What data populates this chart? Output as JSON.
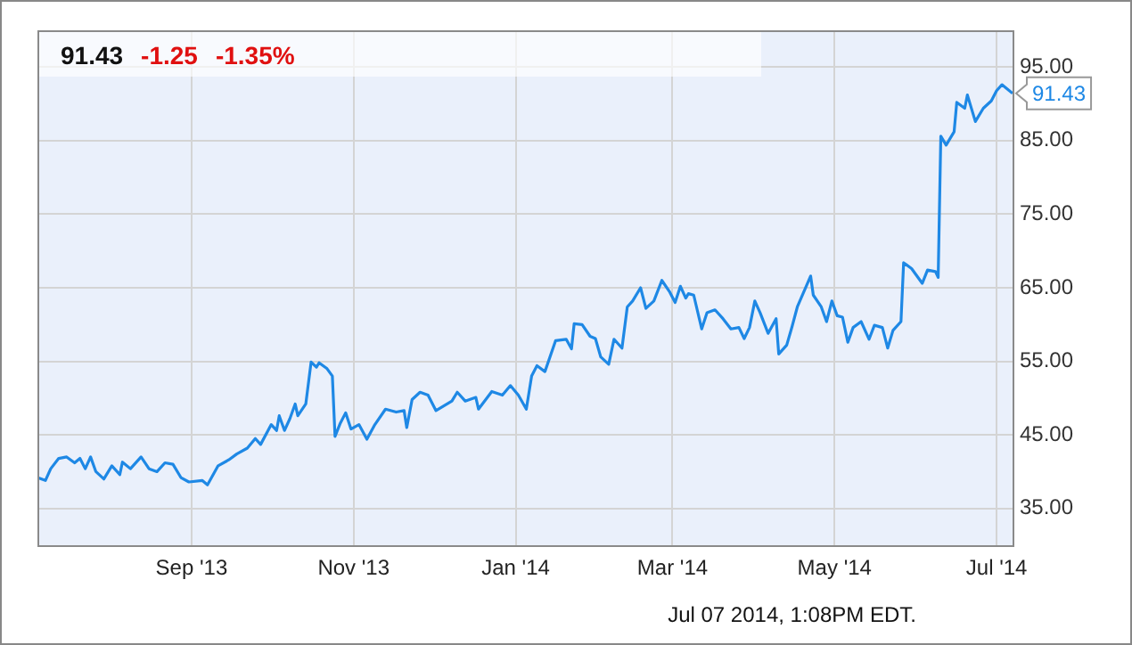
{
  "chart_data": {
    "type": "line",
    "annotations": [
      "91.43",
      "-1.25",
      "-1.35%",
      "Jul 07 2014, 1:08PM EDT.",
      {
        "text": "91.43",
        "x": "2014-07-07",
        "y": 91.43
      }
    ],
    "x": [
      "2013-07-05",
      "2013-07-08",
      "2013-07-10",
      "2013-07-13",
      "2013-07-16",
      "2013-07-19",
      "2013-07-21",
      "2013-07-23",
      "2013-07-25",
      "2013-07-27",
      "2013-07-30",
      "2013-08-02",
      "2013-08-05",
      "2013-08-06",
      "2013-08-09",
      "2013-08-13",
      "2013-08-16",
      "2013-08-19",
      "2013-08-22",
      "2013-08-25",
      "2013-08-28",
      "2013-08-31",
      "2013-09-05",
      "2013-09-07",
      "2013-09-11",
      "2013-09-15",
      "2013-09-18",
      "2013-09-22",
      "2013-09-25",
      "2013-09-27",
      "2013-10-01",
      "2013-10-03",
      "2013-10-04",
      "2013-10-06",
      "2013-10-08",
      "2013-10-10",
      "2013-10-11",
      "2013-10-14",
      "2013-10-16",
      "2013-10-18",
      "2013-10-19",
      "2013-10-22",
      "2013-10-24",
      "2013-10-25",
      "2013-10-27",
      "2013-10-29",
      "2013-10-31",
      "2013-11-03",
      "2013-11-06",
      "2013-11-09",
      "2013-11-13",
      "2013-11-17",
      "2013-11-20",
      "2013-11-21",
      "2013-11-23",
      "2013-11-26",
      "2013-11-29",
      "2013-12-02",
      "2013-12-08",
      "2013-12-10",
      "2013-12-13",
      "2013-12-17",
      "2013-12-18",
      "2013-12-23",
      "2013-12-27",
      "2013-12-30",
      "2014-01-02",
      "2014-01-05",
      "2014-01-07",
      "2014-01-09",
      "2014-01-12",
      "2014-01-16",
      "2014-01-20",
      "2014-01-22",
      "2014-01-23",
      "2014-01-26",
      "2014-01-29",
      "2014-01-31",
      "2014-02-02",
      "2014-02-05",
      "2014-02-07",
      "2014-02-10",
      "2014-02-12",
      "2014-02-14",
      "2014-02-17",
      "2014-02-19",
      "2014-02-22",
      "2014-02-25",
      "2014-02-28",
      "2014-03-02",
      "2014-03-04",
      "2014-03-06",
      "2014-03-07",
      "2014-03-09",
      "2014-03-12",
      "2014-03-14",
      "2014-03-17",
      "2014-03-20",
      "2014-03-23",
      "2014-03-26",
      "2014-03-28",
      "2014-03-30",
      "2014-04-01",
      "2014-04-03",
      "2014-04-06",
      "2014-04-09",
      "2014-04-10",
      "2014-04-13",
      "2014-04-15",
      "2014-04-17",
      "2014-04-22",
      "2014-04-23",
      "2014-04-26",
      "2014-04-28",
      "2014-04-30",
      "2014-05-02",
      "2014-05-04",
      "2014-05-06",
      "2014-05-08",
      "2014-05-11",
      "2014-05-14",
      "2014-05-16",
      "2014-05-19",
      "2014-05-21",
      "2014-05-23",
      "2014-05-26",
      "2014-05-27",
      "2014-05-30",
      "2014-06-03",
      "2014-06-05",
      "2014-06-08",
      "2014-06-09",
      "2014-06-10",
      "2014-06-12",
      "2014-06-15",
      "2014-06-16",
      "2014-06-19",
      "2014-06-20",
      "2014-06-23",
      "2014-06-26",
      "2014-06-29",
      "2014-07-01",
      "2014-07-03",
      "2014-07-07"
    ],
    "series": [
      {
        "color": "#1e88e5",
        "values": [
          39.2,
          38.8,
          40.4,
          41.8,
          42.0,
          41.2,
          41.8,
          40.4,
          42.0,
          40.0,
          39.0,
          40.8,
          39.6,
          41.3,
          40.4,
          42.0,
          40.4,
          40.0,
          41.2,
          41.0,
          39.2,
          38.6,
          38.8,
          38.2,
          40.8,
          41.6,
          42.4,
          43.2,
          44.5,
          43.7,
          46.4,
          45.6,
          47.6,
          45.6,
          47.2,
          49.2,
          47.6,
          49.2,
          54.9,
          54.2,
          54.8,
          54.0,
          53.0,
          44.8,
          46.6,
          48.0,
          45.8,
          46.4,
          44.4,
          46.4,
          48.5,
          48.1,
          48.3,
          46.0,
          49.8,
          50.8,
          50.4,
          48.3,
          49.6,
          50.8,
          49.6,
          50.1,
          48.5,
          50.9,
          50.4,
          51.7,
          50.4,
          48.5,
          53.0,
          54.4,
          53.6,
          57.8,
          58.0,
          56.7,
          60.1,
          60.0,
          58.4,
          58.1,
          55.6,
          54.6,
          58.0,
          56.8,
          62.4,
          63.2,
          65.0,
          62.2,
          63.2,
          66.0,
          64.4,
          63.0,
          65.2,
          63.6,
          64.2,
          64.0,
          59.4,
          61.6,
          62.0,
          60.8,
          59.4,
          59.6,
          58.1,
          59.6,
          63.2,
          61.6,
          58.8,
          60.8,
          56.0,
          57.2,
          59.7,
          62.4,
          66.6,
          64.0,
          62.4,
          60.4,
          63.2,
          61.2,
          61.0,
          57.6,
          59.6,
          60.4,
          58.0,
          59.9,
          59.6,
          56.8,
          59.2,
          60.4,
          68.4,
          67.6,
          65.6,
          67.4,
          67.2,
          66.4,
          85.6,
          84.4,
          86.2,
          90.2,
          89.4,
          91.2,
          87.6,
          89.4,
          90.4,
          91.8,
          92.6,
          91.43
        ]
      }
    ],
    "xlim": [
      "2013-07-05",
      "2014-07-07"
    ],
    "xticks": [
      {
        "value": "2013-09-01",
        "label": "Sep '13"
      },
      {
        "value": "2013-11-01",
        "label": "Nov '13"
      },
      {
        "value": "2014-01-01",
        "label": "Jan '14"
      },
      {
        "value": "2014-03-01",
        "label": "Mar '14"
      },
      {
        "value": "2014-05-01",
        "label": "May '14"
      },
      {
        "value": "2014-07-01",
        "label": "Jul '14"
      }
    ],
    "ylim": [
      30,
      100
    ],
    "yticks": [
      {
        "value": 35,
        "label": "35.00"
      },
      {
        "value": 45,
        "label": "45.00"
      },
      {
        "value": 55,
        "label": "55.00"
      },
      {
        "value": 65,
        "label": "65.00"
      },
      {
        "value": 75,
        "label": "75.00"
      },
      {
        "value": 85,
        "label": "85.00"
      },
      {
        "value": 95,
        "label": "95.00"
      }
    ],
    "grid": true,
    "marker": "none",
    "line_style": "solid"
  }
}
